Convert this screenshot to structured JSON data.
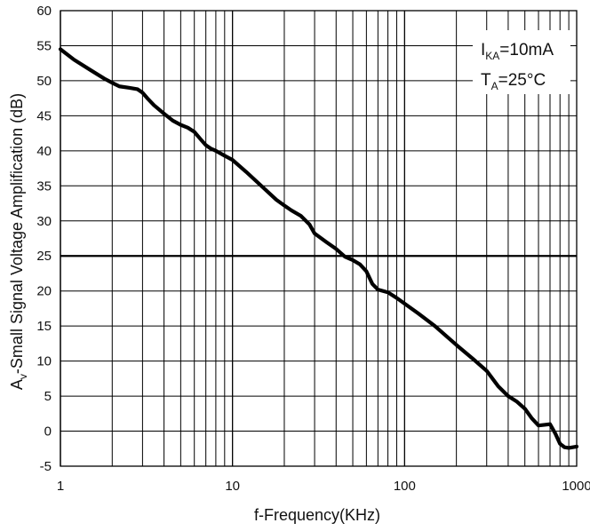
{
  "chart_data": {
    "type": "line",
    "x_scale": "log",
    "xlim": [
      1,
      1000
    ],
    "ylim": [
      -5,
      60
    ],
    "xlabel": "f-Frequency(KHz)",
    "ylabel": "A",
    "ylabel_sub": "v",
    "ylabel_rest": "-Small Signal Voltage Amplification (dB)",
    "x_ticks": [
      "1",
      "10",
      "100",
      "1000"
    ],
    "y_ticks": [
      "60",
      "55",
      "50",
      "45",
      "40",
      "35",
      "30",
      "25",
      "20",
      "15",
      "10",
      "5",
      "0",
      "-5"
    ],
    "grid": true,
    "annotations": {
      "line1": {
        "main": "I",
        "sub": "KA",
        "rest": "=10mA"
      },
      "line2": {
        "main": "T",
        "sub": "A",
        "rest": "=25°C"
      },
      "placement": "top-right"
    },
    "series": [
      {
        "x": [
          1,
          1.2,
          1.5,
          1.8,
          2.0,
          2.2,
          2.5,
          2.8,
          3.0,
          3.2,
          3.5,
          4.0,
          4.5,
          5.0,
          5.5,
          6.0,
          6.5,
          7.0,
          7.5,
          8.0,
          9.0,
          10,
          12,
          15,
          18,
          20,
          22,
          25,
          28,
          30,
          35,
          40,
          45,
          50,
          55,
          60,
          65,
          70,
          80,
          90,
          100,
          120,
          150,
          200,
          250,
          300,
          350,
          400,
          450,
          500,
          550,
          600,
          650,
          700,
          750,
          800,
          850,
          900,
          1000
        ],
        "y": [
          54.5,
          53.0,
          51.5,
          50.3,
          49.7,
          49.2,
          49.0,
          48.8,
          48.3,
          47.5,
          46.5,
          45.3,
          44.3,
          43.7,
          43.3,
          42.7,
          41.7,
          40.8,
          40.3,
          40.0,
          39.3,
          38.7,
          37.0,
          34.8,
          33.0,
          32.2,
          31.5,
          30.7,
          29.5,
          28.2,
          27.0,
          26.0,
          24.9,
          24.4,
          23.8,
          22.8,
          21.0,
          20.2,
          19.8,
          19.0,
          18.2,
          16.8,
          15.0,
          12.3,
          10.3,
          8.6,
          6.4,
          5.0,
          4.2,
          3.2,
          1.8,
          0.8,
          0.9,
          1.0,
          -0.3,
          -1.8,
          -2.3,
          -2.4,
          -2.2
        ]
      }
    ]
  }
}
